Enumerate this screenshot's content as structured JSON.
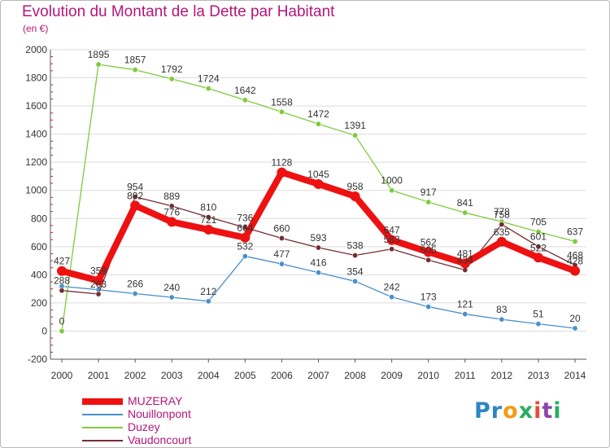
{
  "page": {
    "title": "Evolution du Montant de la Dette par Habitant",
    "subtitle": "(en €)"
  },
  "logo": {
    "letters": [
      {
        "ch": "P",
        "color": "#2e86c1"
      },
      {
        "ch": "r",
        "color": "#2e86c1"
      },
      {
        "ch": "o",
        "color": "#f39c12"
      },
      {
        "ch": "x",
        "color": "#27ae60"
      },
      {
        "ch": "i",
        "color": "#e74c3c"
      },
      {
        "ch": "t",
        "color": "#8e44ad"
      },
      {
        "ch": "i",
        "color": "#27ae60"
      }
    ]
  },
  "chart_data": {
    "type": "line",
    "title": "Evolution du Montant de la Dette par Habitant",
    "ylabel": "(en €)",
    "x": [
      "2000",
      "2001",
      "2002",
      "2003",
      "2004",
      "2005",
      "2006",
      "2007",
      "2008",
      "2009",
      "2010",
      "2011",
      "2012",
      "2013",
      "2014"
    ],
    "ylim": [
      -200,
      2000
    ],
    "yticks": [
      "-200",
      "0",
      "200",
      "400",
      "600",
      "800",
      "1000",
      "1200",
      "1400",
      "1600",
      "1800",
      "2000"
    ],
    "grid": "horizontal",
    "legend": "bottom-left",
    "series": [
      {
        "name": "MUZERAY",
        "color": "#ee1111",
        "values": [
          427,
          359,
          892,
          776,
          721,
          664,
          1128,
          1045,
          958,
          647,
          562,
          481,
          635,
          522,
          428
        ],
        "labels": [
          "427",
          "359",
          "892",
          "776",
          "721",
          "664",
          "1128",
          "1045",
          "958",
          "647",
          "562",
          "481",
          "635",
          "522",
          "428"
        ],
        "labelShow": [
          true,
          true,
          true,
          true,
          true,
          true,
          true,
          true,
          true,
          true,
          true,
          true,
          true,
          true,
          true
        ]
      },
      {
        "name": "Nouillonpont",
        "color": "#4a90c9",
        "values": [
          318,
          294,
          266,
          240,
          212,
          532,
          477,
          416,
          354,
          242,
          173,
          121,
          83,
          51,
          20
        ],
        "labels": [
          "",
          "",
          "266",
          "240",
          "212",
          "532",
          "477",
          "416",
          "354",
          "242",
          "173",
          "121",
          "83",
          "51",
          "20"
        ],
        "labelShow": [
          false,
          false,
          true,
          true,
          true,
          true,
          true,
          true,
          true,
          true,
          true,
          true,
          true,
          true,
          true
        ]
      },
      {
        "name": "Duzey",
        "color": "#7ecb3c",
        "values": [
          0,
          1895,
          1857,
          1792,
          1724,
          1642,
          1558,
          1472,
          1391,
          1000,
          917,
          841,
          778,
          705,
          637
        ],
        "labels": [
          "0",
          "1895",
          "1857",
          "1792",
          "1724",
          "1642",
          "1558",
          "1472",
          "1391",
          "1000",
          "917",
          "841",
          "778",
          "705",
          "637"
        ],
        "labelShow": [
          true,
          true,
          true,
          true,
          true,
          true,
          true,
          true,
          true,
          true,
          true,
          true,
          true,
          true,
          true
        ]
      },
      {
        "name": "Vaudoncourt",
        "color": "#772d33",
        "values": [
          288,
          263,
          954,
          889,
          810,
          736,
          660,
          593,
          538,
          583,
          505,
          434,
          758,
          601,
          468
        ],
        "labels": [
          "288",
          "263",
          "954",
          "889",
          "810",
          "736",
          "660",
          "593",
          "538",
          "583",
          "505",
          "434",
          "758",
          "601",
          "468"
        ],
        "labelShow": [
          true,
          true,
          true,
          true,
          true,
          true,
          true,
          true,
          true,
          true,
          true,
          true,
          true,
          true,
          true
        ]
      }
    ]
  }
}
